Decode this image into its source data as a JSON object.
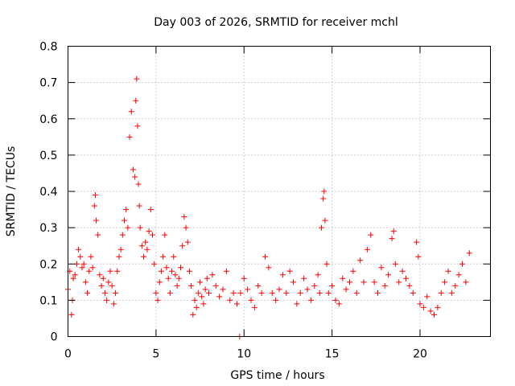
{
  "chart_data": {
    "type": "scatter",
    "title": "Day 003 of 2026, SRMTID for receiver mchl",
    "xlabel": "GPS time / hours",
    "ylabel": "SRMTID / TECUs",
    "xlim": [
      0,
      24
    ],
    "ylim": [
      0,
      0.8
    ],
    "xticks": [
      0,
      5,
      10,
      15,
      20
    ],
    "xtick_labels": [
      "0",
      "5",
      "10",
      "15",
      "20"
    ],
    "yticks": [
      0,
      0.1,
      0.2,
      0.3,
      0.4,
      0.5,
      0.6,
      0.7,
      0.8
    ],
    "ytick_labels": [
      "0",
      "0.1",
      "0.2",
      "0.3",
      "0.4",
      "0.5",
      "0.6",
      "0.7",
      "0.8"
    ],
    "grid": true,
    "marker": "plus",
    "color": "#ff0000",
    "series": [
      {
        "name": "SRMTID",
        "x": [
          0.0,
          0.1,
          0.2,
          0.25,
          0.3,
          0.4,
          0.5,
          0.6,
          0.7,
          0.8,
          0.9,
          1.0,
          1.1,
          1.2,
          1.3,
          1.4,
          1.5,
          1.55,
          1.6,
          1.7,
          1.8,
          1.9,
          2.0,
          2.1,
          2.2,
          2.3,
          2.4,
          2.5,
          2.6,
          2.7,
          2.8,
          2.9,
          3.0,
          3.1,
          3.2,
          3.3,
          3.4,
          3.5,
          3.6,
          3.7,
          3.8,
          3.85,
          3.9,
          3.95,
          4.0,
          4.05,
          4.1,
          4.2,
          4.3,
          4.4,
          4.5,
          4.6,
          4.7,
          4.8,
          4.9,
          5.0,
          5.1,
          5.2,
          5.3,
          5.4,
          5.5,
          5.6,
          5.7,
          5.8,
          5.9,
          6.0,
          6.1,
          6.2,
          6.3,
          6.4,
          6.5,
          6.6,
          6.7,
          6.8,
          6.9,
          7.0,
          7.1,
          7.2,
          7.3,
          7.4,
          7.5,
          7.6,
          7.7,
          7.8,
          7.9,
          8.0,
          8.2,
          8.4,
          8.6,
          8.8,
          9.0,
          9.2,
          9.4,
          9.6,
          9.75,
          9.8,
          10.0,
          10.2,
          10.4,
          10.6,
          10.8,
          11.0,
          11.2,
          11.4,
          11.6,
          11.8,
          12.0,
          12.2,
          12.4,
          12.6,
          12.8,
          13.0,
          13.2,
          13.4,
          13.6,
          13.8,
          14.0,
          14.2,
          14.3,
          14.4,
          14.5,
          14.55,
          14.6,
          14.7,
          14.8,
          15.0,
          15.2,
          15.4,
          15.6,
          15.8,
          16.0,
          16.2,
          16.4,
          16.6,
          16.8,
          17.0,
          17.2,
          17.4,
          17.6,
          17.8,
          18.0,
          18.2,
          18.4,
          18.5,
          18.6,
          18.8,
          19.0,
          19.2,
          19.4,
          19.6,
          19.8,
          19.9,
          20.0,
          20.2,
          20.4,
          20.6,
          20.8,
          21.0,
          21.2,
          21.4,
          21.6,
          21.8,
          22.0,
          22.2,
          22.4,
          22.6,
          22.8
        ],
        "y": [
          0.13,
          0.18,
          0.06,
          0.1,
          0.16,
          0.17,
          0.2,
          0.24,
          0.22,
          0.19,
          0.2,
          0.15,
          0.12,
          0.18,
          0.22,
          0.19,
          0.36,
          0.39,
          0.32,
          0.28,
          0.17,
          0.14,
          0.16,
          0.12,
          0.1,
          0.15,
          0.18,
          0.14,
          0.09,
          0.12,
          0.18,
          0.22,
          0.24,
          0.28,
          0.32,
          0.35,
          0.3,
          0.55,
          0.62,
          0.46,
          0.44,
          0.65,
          0.71,
          0.58,
          0.42,
          0.36,
          0.3,
          0.25,
          0.22,
          0.26,
          0.24,
          0.29,
          0.35,
          0.28,
          0.2,
          0.12,
          0.1,
          0.15,
          0.18,
          0.22,
          0.28,
          0.19,
          0.16,
          0.12,
          0.18,
          0.22,
          0.17,
          0.14,
          0.16,
          0.19,
          0.25,
          0.33,
          0.3,
          0.26,
          0.18,
          0.14,
          0.06,
          0.1,
          0.08,
          0.12,
          0.15,
          0.11,
          0.09,
          0.13,
          0.16,
          0.12,
          0.17,
          0.14,
          0.11,
          0.13,
          0.18,
          0.1,
          0.12,
          0.09,
          0.0,
          0.12,
          0.16,
          0.13,
          0.1,
          0.08,
          0.14,
          0.12,
          0.22,
          0.19,
          0.12,
          0.1,
          0.13,
          0.17,
          0.12,
          0.18,
          0.15,
          0.09,
          0.12,
          0.16,
          0.13,
          0.1,
          0.14,
          0.17,
          0.12,
          0.3,
          0.38,
          0.4,
          0.32,
          0.2,
          0.12,
          0.14,
          0.1,
          0.09,
          0.16,
          0.13,
          0.15,
          0.18,
          0.12,
          0.21,
          0.15,
          0.24,
          0.28,
          0.15,
          0.12,
          0.19,
          0.14,
          0.17,
          0.27,
          0.29,
          0.2,
          0.15,
          0.18,
          0.16,
          0.14,
          0.12,
          0.26,
          0.22,
          0.09,
          0.08,
          0.11,
          0.07,
          0.06,
          0.08,
          0.12,
          0.15,
          0.18,
          0.12,
          0.14,
          0.17,
          0.2,
          0.15,
          0.23
        ]
      }
    ]
  }
}
